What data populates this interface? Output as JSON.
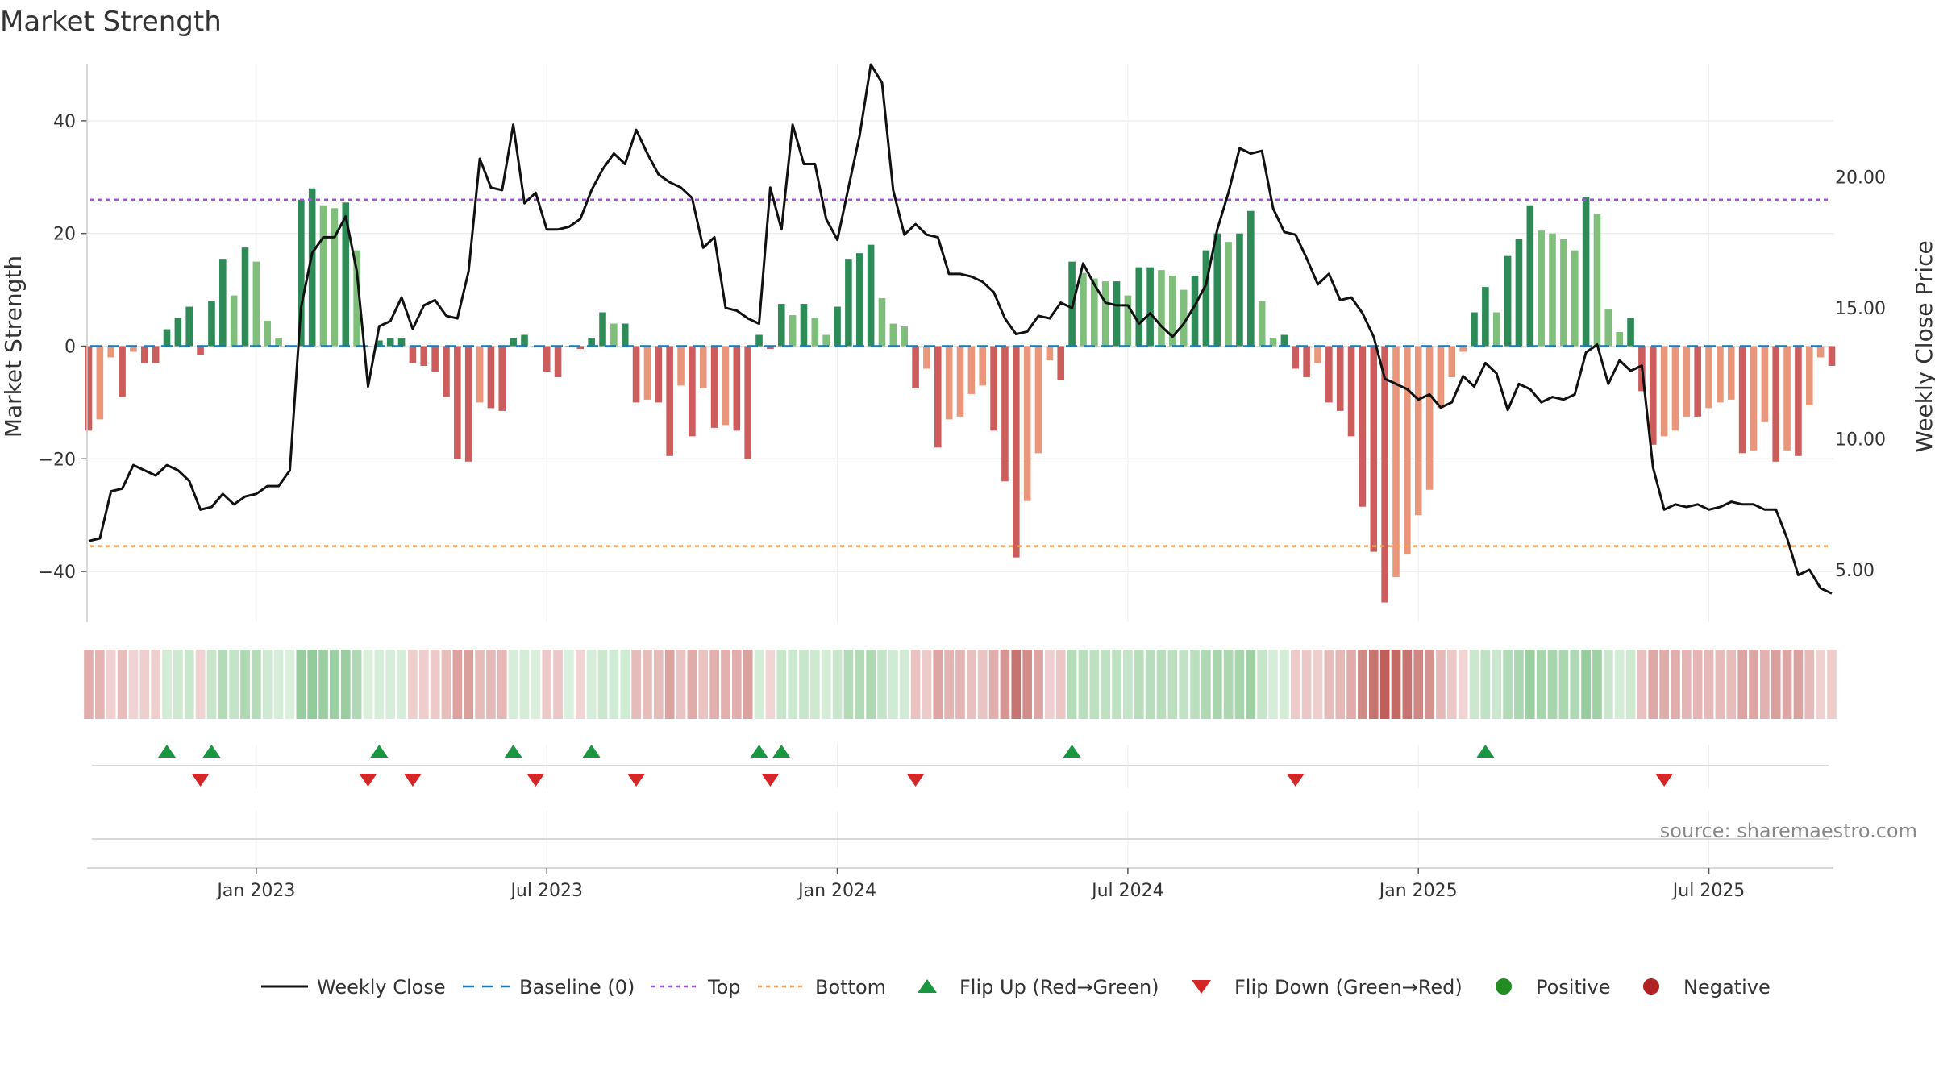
{
  "chart_data": {
    "type": "bar",
    "title": "Market Strength",
    "ylabel_left": "Market Strength",
    "ylabel_right": "Weekly Close Price",
    "source": "source: sharemaestro.com",
    "left_ylim": [
      -49,
      50
    ],
    "left_ticks": [
      {
        "v": 40,
        "t": "40"
      },
      {
        "v": 20,
        "t": "20"
      },
      {
        "v": 0,
        "t": "0"
      },
      {
        "v": -20,
        "t": "−20"
      },
      {
        "v": -40,
        "t": "−40"
      }
    ],
    "right_ylim": [
      3.0,
      24.3
    ],
    "right_ticks": [
      {
        "v": 20,
        "t": "20.00"
      },
      {
        "v": 15,
        "t": "15.00"
      },
      {
        "v": 10,
        "t": "10.00"
      },
      {
        "v": 5,
        "t": "5.00"
      }
    ],
    "top_line": 26,
    "bottom_line": -35.5,
    "x_start_index": 0,
    "n_weeks": 157,
    "x_ticks": [
      {
        "i": 15,
        "t": "Jan 2023"
      },
      {
        "i": 41,
        "t": "Jul 2023"
      },
      {
        "i": 67,
        "t": "Jan 2024"
      },
      {
        "i": 93,
        "t": "Jul 2024"
      },
      {
        "i": 119,
        "t": "Jan 2025"
      },
      {
        "i": 145,
        "t": "Jul 2025"
      }
    ],
    "strength": [
      -15,
      -13,
      -2,
      -9,
      -1,
      -3,
      -3,
      3,
      5,
      7,
      -1.5,
      8,
      15.5,
      9,
      17.5,
      15,
      4.5,
      1.5,
      0,
      26,
      28,
      25,
      24.5,
      25.5,
      17,
      0,
      1,
      1.5,
      1.5,
      -3,
      -3.5,
      -4.5,
      -9,
      -20,
      -20.5,
      -10,
      -11,
      -11.5,
      1.5,
      2,
      0,
      -4.5,
      -5.5,
      0,
      -0.5,
      1.5,
      6,
      4,
      4,
      -10,
      -9.5,
      -10,
      -19.5,
      -7,
      -16,
      -7.5,
      -14.5,
      -14,
      -15,
      -20,
      2,
      -0.5,
      7.5,
      5.5,
      7.5,
      5,
      2,
      7,
      15.5,
      16.5,
      18,
      8.5,
      4,
      3.5,
      -7.5,
      -4,
      -18,
      -13,
      -12.5,
      -8.5,
      -7,
      -15,
      -24,
      -37.5,
      -27.5,
      -19,
      -2.5,
      -6,
      15,
      13,
      12,
      11.5,
      11.5,
      9,
      14,
      14,
      13.5,
      12.5,
      10,
      12.5,
      17,
      20,
      18.5,
      20,
      24,
      8,
      1.5,
      2,
      -4,
      -5.5,
      -3,
      -10,
      -11.5,
      -16,
      -28.5,
      -36.5,
      -45.5,
      -41,
      -37,
      -30,
      -25.5,
      -11,
      -5.5,
      -1,
      6,
      10.5,
      6,
      16,
      19,
      25,
      20.5,
      20,
      19,
      17,
      26.5,
      23.5,
      6.5,
      2.5,
      5,
      -8,
      -17.5,
      -16,
      -15,
      -12.5,
      -12.5,
      -11,
      -10,
      -9.5,
      -19,
      -18.5,
      -13.5,
      -20.5,
      -18.5,
      -19.5,
      -10.5,
      -2,
      -3.5
    ],
    "weekly_close": [
      6.1,
      6.2,
      8.0,
      8.1,
      9.0,
      8.8,
      8.6,
      9.0,
      8.8,
      8.4,
      7.3,
      7.4,
      7.9,
      7.5,
      7.8,
      7.9,
      8.2,
      8.2,
      8.8,
      15.0,
      17.1,
      17.7,
      17.7,
      18.5,
      16.4,
      12.0,
      14.3,
      14.5,
      15.4,
      14.2,
      15.1,
      15.3,
      14.7,
      14.6,
      16.4,
      20.7,
      19.6,
      19.5,
      22.0,
      19.0,
      19.4,
      18.0,
      18.0,
      18.1,
      18.4,
      19.5,
      20.3,
      20.9,
      20.5,
      21.8,
      20.9,
      20.1,
      19.8,
      19.6,
      19.2,
      17.3,
      17.7,
      15.0,
      14.9,
      14.6,
      14.4,
      19.6,
      18.0,
      22.0,
      20.5,
      20.5,
      18.4,
      17.6,
      19.6,
      21.6,
      24.3,
      23.6,
      19.5,
      17.8,
      18.2,
      17.8,
      17.7,
      16.3,
      16.3,
      16.2,
      16.0,
      15.6,
      14.6,
      14.0,
      14.1,
      14.7,
      14.6,
      15.2,
      15.0,
      16.7,
      15.9,
      15.2,
      15.1,
      15.1,
      14.4,
      14.8,
      14.3,
      13.9,
      14.4,
      15.1,
      15.9,
      18.0,
      19.4,
      21.1,
      20.9,
      21.0,
      18.8,
      17.9,
      17.8,
      16.9,
      15.9,
      16.3,
      15.3,
      15.4,
      14.8,
      13.9,
      12.3,
      12.1,
      11.9,
      11.5,
      11.7,
      11.2,
      11.4,
      12.4,
      12.0,
      12.9,
      12.5,
      11.1,
      12.1,
      11.9,
      11.4,
      11.6,
      11.5,
      11.7,
      13.3,
      13.6,
      12.1,
      13.0,
      12.6,
      12.8,
      8.9,
      7.3,
      7.5,
      7.4,
      7.5,
      7.3,
      7.4,
      7.6,
      7.5,
      7.5,
      7.3,
      7.3,
      6.2,
      4.8,
      5.0,
      4.3,
      4.1
    ],
    "flip_up_idx": [
      7,
      11,
      26,
      38,
      45,
      60,
      62,
      88,
      125
    ],
    "flip_down_idx": [
      10,
      25,
      29,
      40,
      49,
      61,
      74,
      108,
      141
    ],
    "legend": [
      "Weekly Close",
      "Baseline (0)",
      "Top",
      "Bottom",
      "Flip Up (Red→Green)",
      "Flip Down (Green→Red)",
      "Positive",
      "Negative"
    ],
    "colors": {
      "pos_strong": "#2e8b57",
      "pos_weak": "#7fbf7b",
      "neg_strong": "#cd5c5c",
      "neg_weak": "#e9967a",
      "line": "#111111",
      "baseline": "#1f77b4",
      "top": "#9b59d0",
      "bottom": "#f0a060",
      "flip_up": "#1a9641",
      "flip_down": "#d62728",
      "positive_dot": "#228b22",
      "negative_dot": "#b22222"
    }
  }
}
